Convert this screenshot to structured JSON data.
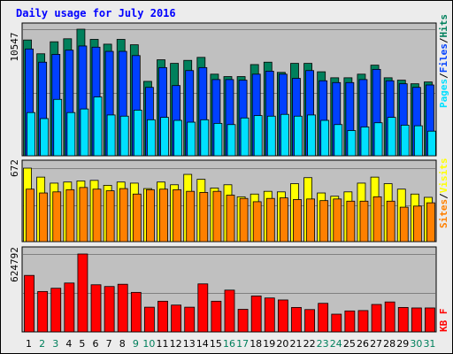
{
  "title": "Daily usage for July 2016",
  "colors": {
    "background": "#ececec",
    "plot_bg": "#c0c0c0",
    "title": "#0000ff",
    "hits": "#00805c",
    "files": "#0040ff",
    "pages": "#00e0ff",
    "visits": "#ffff00",
    "sites": "#ff8000",
    "kbytes": "#ff0000",
    "weekend_label": "#00805c",
    "weekday_label": "#000000"
  },
  "legend": {
    "top": {
      "pages": "Pages",
      "files": "Files",
      "hits": "Hits",
      "sep": "/"
    },
    "mid": {
      "sites": "Sites",
      "visits": "Visits",
      "sep": "/"
    },
    "bottom": {
      "kbytes": "KB F"
    }
  },
  "chart_data": {
    "type": "bar",
    "title": "Daily usage for July 2016",
    "x": [
      "1",
      "2",
      "3",
      "4",
      "5",
      "6",
      "7",
      "8",
      "9",
      "10",
      "11",
      "12",
      "13",
      "14",
      "15",
      "16",
      "17",
      "18",
      "19",
      "20",
      "21",
      "22",
      "23",
      "24",
      "25",
      "26",
      "27",
      "28",
      "29",
      "30",
      "31"
    ],
    "weekend_days": [
      "2",
      "3",
      "9",
      "10",
      "16",
      "17",
      "23",
      "24",
      "30",
      "31"
    ],
    "panels": [
      {
        "name": "top",
        "ymax_label": "10547",
        "ymax": 10547,
        "series": [
          {
            "name": "Hits",
            "values": [
              9650,
              8500,
              9500,
              9750,
              10547,
              9700,
              9300,
              9700,
              9250,
              6200,
              8000,
              7700,
              7950,
              8200,
              6800,
              6600,
              6600,
              7600,
              7800,
              6950,
              7700,
              7700,
              7000,
              6500,
              6500,
              6800,
              7550,
              6500,
              6300,
              6000,
              6150
            ]
          },
          {
            "name": "Files",
            "values": [
              8900,
              7800,
              8450,
              8800,
              9150,
              9050,
              8700,
              8700,
              8350,
              5700,
              7350,
              5850,
              7100,
              7350,
              6350,
              6350,
              6300,
              6800,
              7050,
              6800,
              6450,
              7100,
              6250,
              6100,
              6100,
              6350,
              7200,
              6250,
              6000,
              5700,
              5900
            ]
          },
          {
            "name": "Pages",
            "values": [
              3600,
              3100,
              4700,
              3600,
              3900,
              4900,
              3400,
              3300,
              3800,
              3000,
              3200,
              2950,
              2800,
              3000,
              2700,
              2600,
              3150,
              3350,
              3300,
              3450,
              3300,
              3400,
              2950,
              2600,
              2100,
              2400,
              2750,
              3200,
              2550,
              2500,
              2050
            ]
          }
        ]
      },
      {
        "name": "middle",
        "ymax_label": "672",
        "ymax": 672,
        "series": [
          {
            "name": "Visits",
            "values": [
              672,
              590,
              535,
              545,
              555,
              560,
              515,
              545,
              535,
              485,
              545,
              520,
              615,
              570,
              490,
              520,
              410,
              435,
              460,
              455,
              530,
              585,
              445,
              415,
              455,
              535,
              590,
              530,
              480,
              435,
              405
            ]
          },
          {
            "name": "Sites",
            "values": [
              480,
              445,
              455,
              475,
              495,
              480,
              465,
              485,
              435,
              475,
              480,
              475,
              460,
              450,
              460,
              425,
              395,
              365,
              395,
              400,
              385,
              390,
              375,
              390,
              370,
              370,
              410,
              370,
              315,
              325,
              355
            ]
          }
        ]
      },
      {
        "name": "bottom",
        "ymax_label": "624792",
        "ymax": 624792,
        "series": [
          {
            "name": "KBytes",
            "values": [
              453000,
              324000,
              350000,
              392000,
              624792,
              378000,
              364000,
              382000,
              317000,
              198000,
              246000,
              215000,
              198000,
              385000,
              246000,
              335000,
              181000,
              288000,
              272000,
              256000,
              196000,
              179000,
              229000,
              142000,
              168000,
              171000,
              220000,
              240000,
              196000,
              192000,
              192000
            ]
          }
        ]
      }
    ]
  }
}
